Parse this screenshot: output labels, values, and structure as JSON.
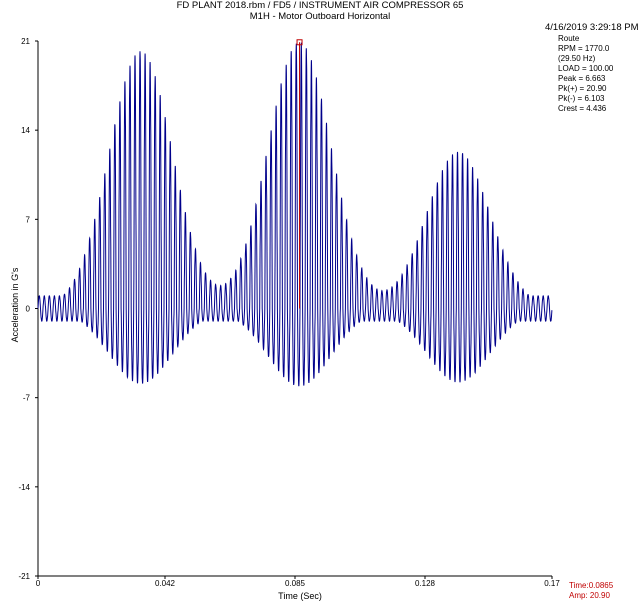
{
  "header": {
    "title_line1": "FD PLANT 2018.rbm / FD5 / INSTRUMENT AIR COMPRESSOR 65",
    "title_line2": "M1H - Motor Outboard Horizontal"
  },
  "info_panel": {
    "datetime": "4/16/2019 3:29:18 PM",
    "route": "Route",
    "rpm": "RPM = 1770.0",
    "hz": "(29.50 Hz)",
    "load": "LOAD = 100.00",
    "peak": "Peak = 6.663",
    "pk_plus": "Pk(+) = 20.90",
    "pk_minus": "Pk(-) = 6.103",
    "crest": "Crest = 4.436"
  },
  "cursor_readout": {
    "time": "Time:0.0865",
    "amp": "Amp: 20.90"
  },
  "chart_data": {
    "type": "line",
    "title": "FD PLANT 2018.rbm / FD5 / INSTRUMENT AIR COMPRESSOR 65",
    "subtitle": "M1H - Motor Outboard Horizontal",
    "xlabel": "Time (Sec)",
    "ylabel": "Acceleration in G's",
    "xlim": [
      0,
      0.17
    ],
    "ylim": [
      -21,
      21
    ],
    "x_ticks": [
      "0",
      "0.042",
      "0.085",
      "0.128",
      "0.17"
    ],
    "y_ticks": [
      "21",
      "14",
      "7",
      "0",
      "-7",
      "-14",
      "-21"
    ],
    "grid": false,
    "series_color": "#00008b",
    "cursor_color": "#c00000",
    "cursor": {
      "time": 0.0865,
      "amp": 20.9
    },
    "waveform": {
      "sample_rate_hz": 3600,
      "carrier_hz": 600,
      "bursts": [
        {
          "center": 0.034,
          "width": 0.0105,
          "pos_peak": 20.2,
          "neg_peak": -5.9
        },
        {
          "center": 0.0865,
          "width": 0.0105,
          "pos_peak": 20.9,
          "neg_peak": -6.1
        },
        {
          "center": 0.139,
          "width": 0.0105,
          "pos_peak": 12.3,
          "neg_peak": -5.8
        }
      ],
      "baseline_amp": 1.0
    }
  }
}
